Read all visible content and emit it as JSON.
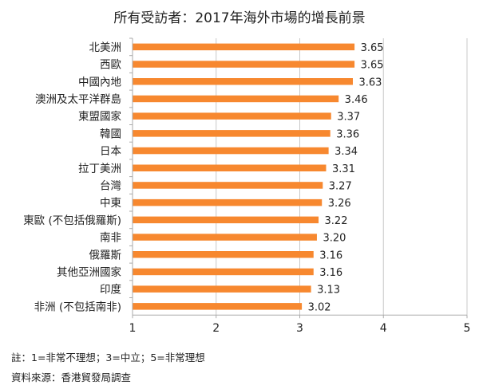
{
  "chart_data": {
    "type": "bar",
    "orientation": "horizontal",
    "title": "所有受訪者：2017年海外市場的增長前景",
    "categories": [
      "北美洲",
      "西歐",
      "中國內地",
      "澳洲及太平洋群島",
      "東盟國家",
      "韓國",
      "日本",
      "拉丁美洲",
      "台灣",
      "中東",
      "東歐 (不包括俄羅斯)",
      "南非",
      "俄羅斯",
      "其他亞洲國家",
      "印度",
      "非洲 (不包括南非)"
    ],
    "values": [
      3.65,
      3.65,
      3.63,
      3.46,
      3.37,
      3.36,
      3.34,
      3.31,
      3.27,
      3.26,
      3.22,
      3.2,
      3.16,
      3.16,
      3.13,
      3.02
    ],
    "value_labels": [
      "3.65",
      "3.65",
      "3.63",
      "3.46",
      "3.37",
      "3.36",
      "3.34",
      "3.31",
      "3.27",
      "3.26",
      "3.22",
      "3.20",
      "3.16",
      "3.16",
      "3.13",
      "3.02"
    ],
    "xlim": [
      1,
      5
    ],
    "xticks": [
      "1",
      "2",
      "3",
      "4",
      "5"
    ],
    "grid": "vertical",
    "bar_color": "#F7882F"
  },
  "notes": {
    "note": "註：1=非常不理想；3=中立；5=非常理想",
    "source": "資料來源：香港貿發局調查"
  }
}
